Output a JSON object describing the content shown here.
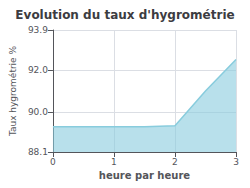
{
  "chart_data": {
    "type": "area",
    "title": "Evolution du taux d'hygrométrie",
    "xlabel": "heure par heure",
    "ylabel": "Taux hygrométrie %",
    "x": [
      0,
      0.5,
      1.0,
      1.5,
      2.0,
      2.5,
      3.0
    ],
    "values": [
      89.3,
      89.3,
      89.3,
      89.3,
      89.35,
      91.0,
      92.5
    ],
    "color": "#88ccdd",
    "xlim": [
      0,
      3
    ],
    "ylim": [
      88.1,
      93.9
    ],
    "xticks": [
      0,
      1,
      2,
      3
    ],
    "yticks": [
      88.1,
      {
        "value": 90.0,
        "label": "90.0"
      },
      {
        "value": 92.0,
        "label": "92.0"
      },
      93.9
    ],
    "grid": true
  }
}
